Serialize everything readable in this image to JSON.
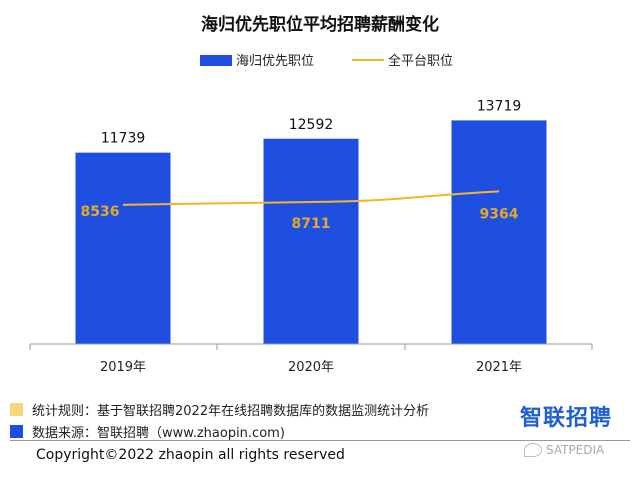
{
  "colors": {
    "bar": "#1f4fe0",
    "line": "#f7b32b",
    "line_label": "#e3a92a",
    "note_yellow": "#f7d77a",
    "note_blue": "#1f4fe0"
  },
  "chart_data": {
    "type": "bar",
    "title": "海归优先职位平均招聘薪酬变化",
    "categories": [
      "2019年",
      "2020年",
      "2021年"
    ],
    "series": [
      {
        "name": "海归优先职位",
        "kind": "bar",
        "values": [
          11739,
          12592,
          13719
        ]
      },
      {
        "name": "全平台职位",
        "kind": "line",
        "values": [
          8536,
          8711,
          9364
        ]
      }
    ],
    "legend": "top-center",
    "grid": false
  },
  "footer": {
    "note1": "统计规则：基于智联招聘2022年在线招聘数据库的数据监测统计分析",
    "note2": "数据来源：智联招聘（www.zhaopin.com)",
    "brand": "智联招聘",
    "copyright": "Copyright©2022 zhaopin all rights reserved",
    "watermark": "SATPEDIA"
  }
}
